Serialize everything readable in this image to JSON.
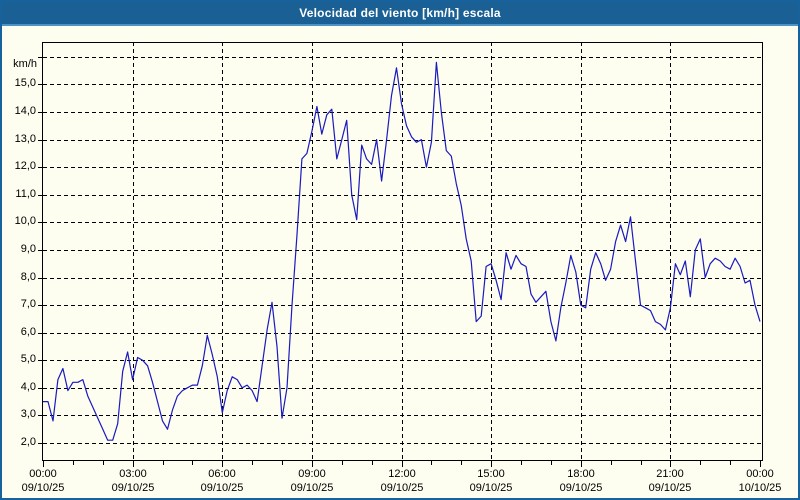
{
  "window": {
    "title": "Velocidad del viento [km/h] escala"
  },
  "colors": {
    "titlebar": "#1b6094",
    "titlebar_edge": "#4e93c6",
    "window_border": "#17629c",
    "surface_background": "#fdfdf0",
    "grid": "#000000",
    "plot_border": "#000000",
    "series_line": "#1a1ac0",
    "label_text": "#000000",
    "title_text": "#ffffff"
  },
  "chart_data": {
    "type": "line",
    "title": "Velocidad del viento [km/h] escala",
    "ylabel": "km/h",
    "unit_label": "km/h",
    "ylim": [
      2,
      16
    ],
    "y_gridline_max": 16,
    "y_tick_labels": [
      "2,0",
      "3,0",
      "4,0",
      "5,0",
      "6,0",
      "7,0",
      "8,0",
      "9,0",
      "10,0",
      "11,0",
      "12,0",
      "13,0",
      "14,0",
      "15,0"
    ],
    "grid": "dashed",
    "legend": "none",
    "x_start_hour": 0,
    "x_end_hour": 24,
    "sample_interval_minutes": 10,
    "x_major_ticks": [
      {
        "time": "00:00",
        "date": "09/10/25"
      },
      {
        "time": "03:00",
        "date": "09/10/25"
      },
      {
        "time": "06:00",
        "date": "09/10/25"
      },
      {
        "time": "09:00",
        "date": "09/10/25"
      },
      {
        "time": "12:00",
        "date": "09/10/25"
      },
      {
        "time": "15:00",
        "date": "09/10/25"
      },
      {
        "time": "18:00",
        "date": "09/10/25"
      },
      {
        "time": "21:00",
        "date": "09/10/25"
      },
      {
        "time": "00:00",
        "date": "10/10/25"
      }
    ],
    "hours_per_major_tick": 3,
    "minor_tick_every_hours": 1,
    "values": [
      3.5,
      3.5,
      2.8,
      4.3,
      4.7,
      3.9,
      4.2,
      4.2,
      4.3,
      3.7,
      3.3,
      2.9,
      2.5,
      2.1,
      2.1,
      2.7,
      4.6,
      5.3,
      4.3,
      5.1,
      5.0,
      4.8,
      4.2,
      3.5,
      2.8,
      2.5,
      3.2,
      3.7,
      3.9,
      4.0,
      4.1,
      4.1,
      4.8,
      5.9,
      5.2,
      4.4,
      3.1,
      3.9,
      4.4,
      4.3,
      4.0,
      4.1,
      3.9,
      3.5,
      4.8,
      6.1,
      7.1,
      5.5,
      2.9,
      4.0,
      7.0,
      9.5,
      12.3,
      12.5,
      13.3,
      14.2,
      13.2,
      13.9,
      14.1,
      12.3,
      13.0,
      13.7,
      11.0,
      10.1,
      12.8,
      12.3,
      12.1,
      13.0,
      11.5,
      13.0,
      14.6,
      15.6,
      14.3,
      13.5,
      13.1,
      12.9,
      13.0,
      12.0,
      12.9,
      15.8,
      14.0,
      12.6,
      12.4,
      11.4,
      10.6,
      9.4,
      8.6,
      6.4,
      6.6,
      8.4,
      8.5,
      7.9,
      7.2,
      8.9,
      8.3,
      8.8,
      8.5,
      8.4,
      7.4,
      7.1,
      7.3,
      7.5,
      6.4,
      5.7,
      6.9,
      7.8,
      8.8,
      8.2,
      7.0,
      6.9,
      8.3,
      8.9,
      8.5,
      7.9,
      8.3,
      9.3,
      9.9,
      9.3,
      10.2,
      8.6,
      7.0,
      6.9,
      6.8,
      6.4,
      6.3,
      6.1,
      6.9,
      8.5,
      8.1,
      8.6,
      7.3,
      9.0,
      9.4,
      8.0,
      8.5,
      8.7,
      8.6,
      8.4,
      8.3,
      8.7,
      8.4,
      7.8,
      7.9,
      7.0,
      6.4
    ]
  }
}
